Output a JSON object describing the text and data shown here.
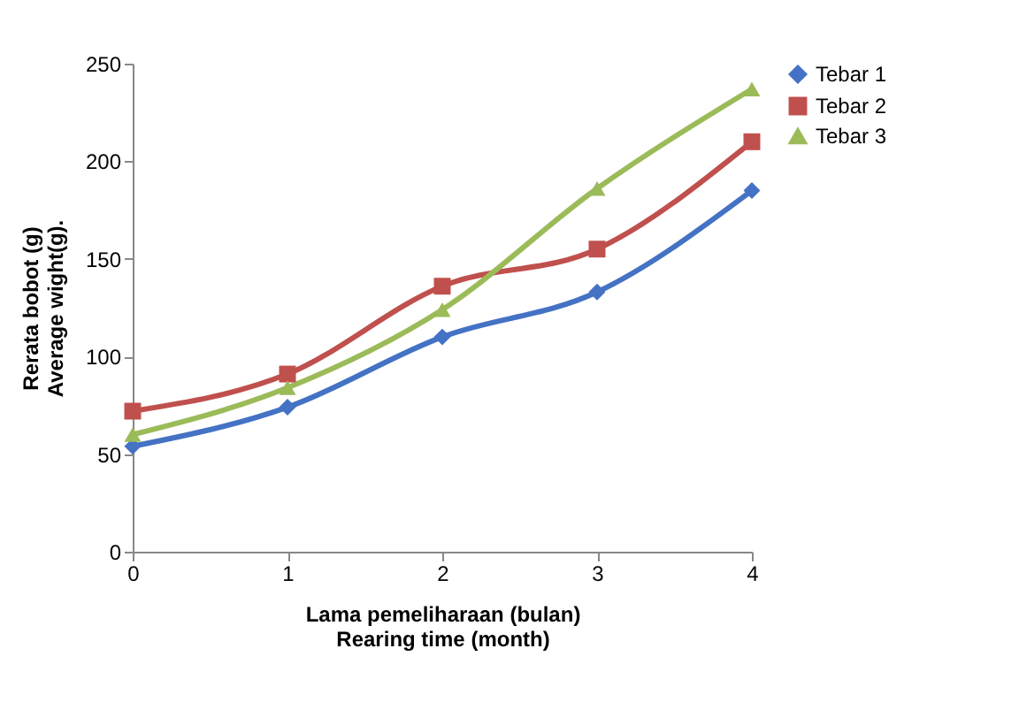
{
  "chart_data": {
    "type": "line",
    "xlabel": "Lama pemeliharaan (bulan)\nRearing time (month)",
    "ylabel": "Rerata bobot (g)\nAverage wight(g).",
    "x": [
      0,
      1,
      2,
      3,
      4
    ],
    "xlim": [
      0,
      4
    ],
    "xticks": [
      0,
      1,
      2,
      3,
      4
    ],
    "ylim": [
      0,
      250
    ],
    "yticks": [
      0,
      50,
      100,
      150,
      200,
      250
    ],
    "grid": false,
    "legend": "right",
    "series": [
      {
        "name": "Tebar 1",
        "color": "#4472c4",
        "marker": "diamond",
        "values": [
          54,
          74,
          110,
          133,
          185
        ]
      },
      {
        "name": "Tebar 2",
        "color": "#c0504d",
        "marker": "square",
        "values": [
          72,
          91,
          136,
          155,
          210
        ]
      },
      {
        "name": "Tebar 3",
        "color": "#9bbb59",
        "marker": "triangle",
        "values": [
          60,
          84,
          124,
          186,
          237
        ]
      }
    ]
  }
}
